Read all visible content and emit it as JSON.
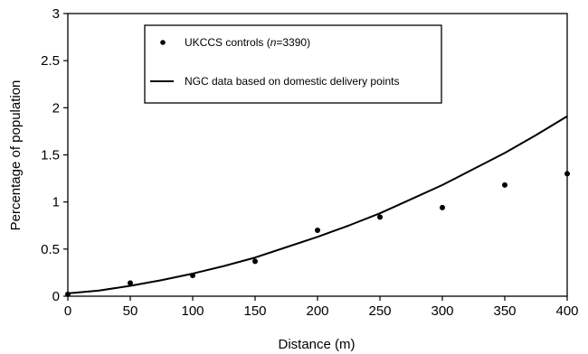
{
  "chart_data": {
    "type": "scatter",
    "title": "",
    "xlabel": "Distance (m)",
    "ylabel": "Percentage of population",
    "xlim": [
      0,
      400
    ],
    "ylim": [
      0,
      3
    ],
    "xticks": [
      "0",
      "50",
      "100",
      "150",
      "200",
      "250",
      "300",
      "350",
      "400"
    ],
    "yticks": [
      "0",
      "0.5",
      "1",
      "1.5",
      "2",
      "2.5",
      "3"
    ],
    "grid": false,
    "legend_position": "top-center",
    "series": [
      {
        "name": "UKCCS controls (n=3390)",
        "kind": "points",
        "color": "#000000",
        "x": [
          0,
          50,
          100,
          150,
          200,
          250,
          300,
          350,
          400
        ],
        "y": [
          0.02,
          0.14,
          0.22,
          0.37,
          0.7,
          0.84,
          0.94,
          1.18,
          1.3
        ]
      },
      {
        "name": "NGC data based on domestic delivery points",
        "kind": "line",
        "color": "#000000",
        "x": [
          0,
          25,
          50,
          75,
          100,
          125,
          150,
          175,
          200,
          225,
          250,
          275,
          300,
          325,
          350,
          375,
          400
        ],
        "y": [
          0.03,
          0.06,
          0.11,
          0.17,
          0.24,
          0.32,
          0.41,
          0.52,
          0.63,
          0.75,
          0.88,
          1.03,
          1.18,
          1.35,
          1.52,
          1.71,
          1.91
        ]
      }
    ],
    "legend": {
      "entries": [
        {
          "prefix": "UKCCS controls (",
          "italic": "n",
          "suffix": "=3390)",
          "symbol": "dot"
        },
        {
          "text": "NGC data based on domestic delivery points",
          "symbol": "line"
        }
      ]
    }
  }
}
